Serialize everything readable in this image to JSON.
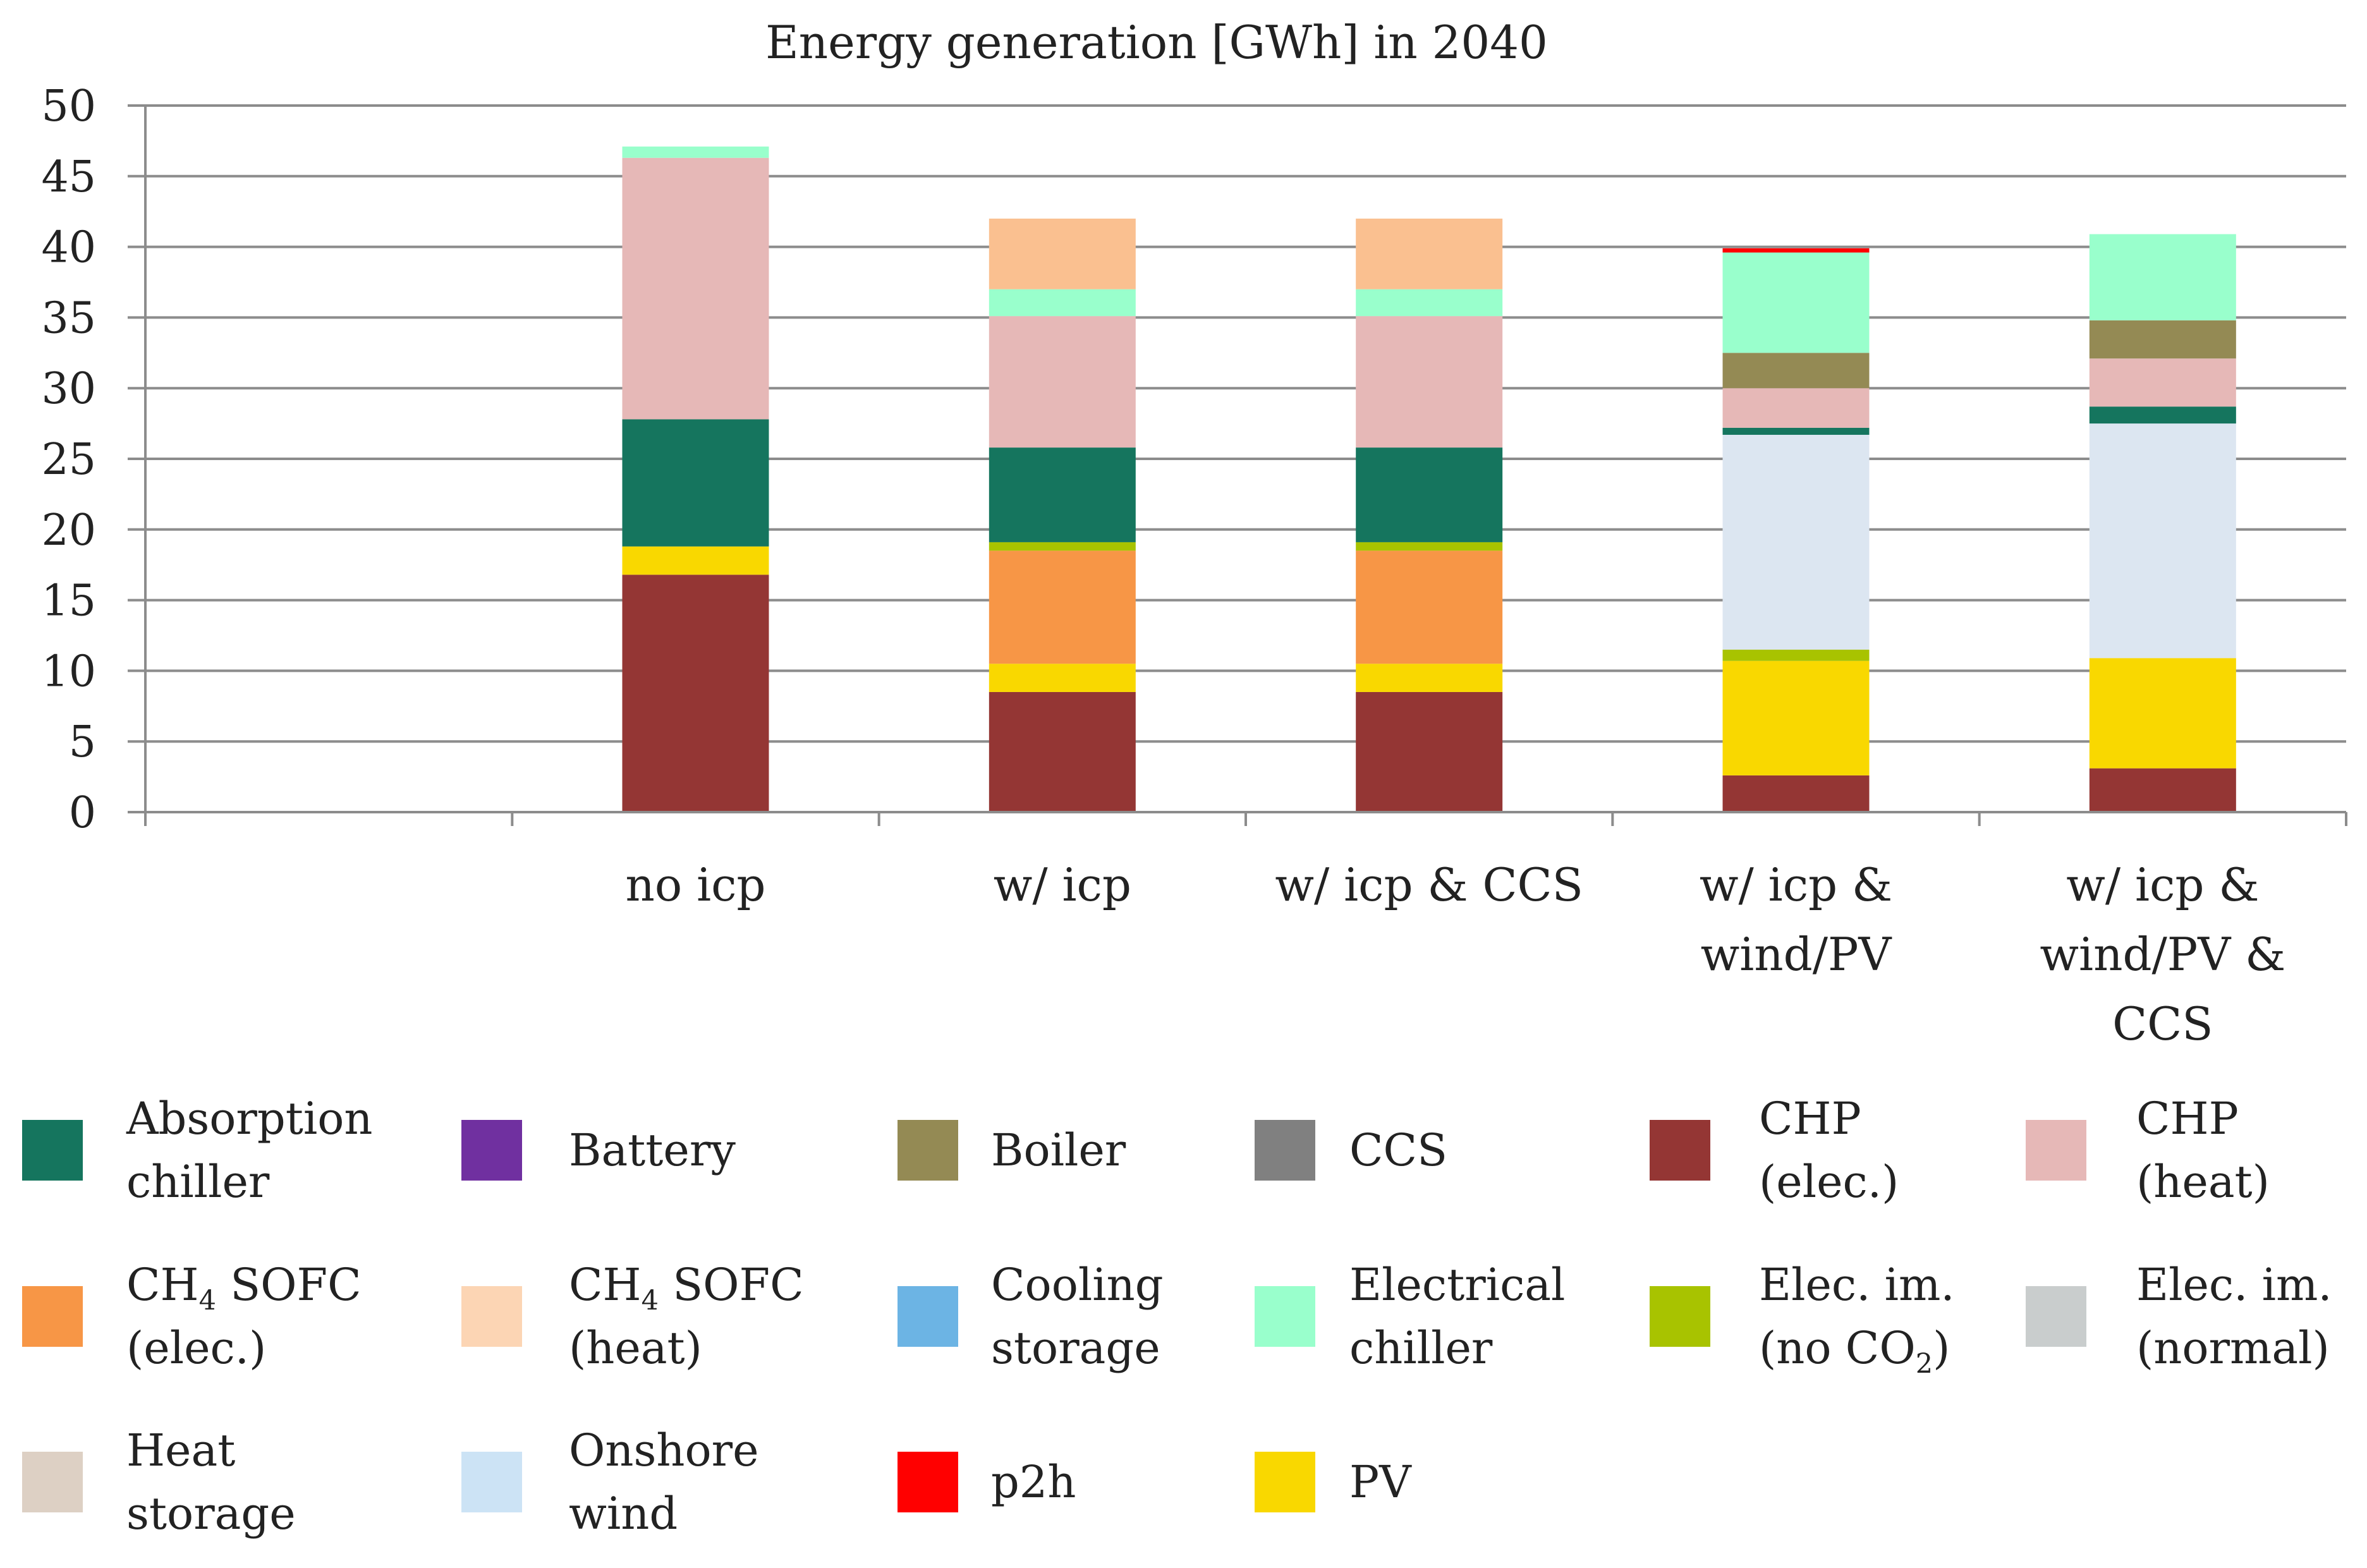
{
  "chart_data": {
    "type": "bar",
    "stacked": true,
    "title": "Energy generation [GWh] in 2040",
    "xlabel": "",
    "ylabel": "",
    "ylim": [
      0,
      50
    ],
    "yticks": [
      0,
      5,
      10,
      15,
      20,
      25,
      30,
      35,
      40,
      45,
      50
    ],
    "grid": true,
    "legend_position": "bottom",
    "categories": [
      {
        "id": "empty",
        "lines": []
      },
      {
        "id": "no-icp",
        "lines": [
          "no icp"
        ]
      },
      {
        "id": "w-icp",
        "lines": [
          "w/ icp"
        ]
      },
      {
        "id": "w-icp-ccs",
        "lines": [
          "w/ icp & CCS"
        ]
      },
      {
        "id": "w-icp-wind-pv",
        "lines": [
          "w/ icp &",
          "wind/PV"
        ]
      },
      {
        "id": "w-icp-wind-pv-ccs",
        "lines": [
          "w/ icp &",
          "wind/PV &",
          "CCS"
        ]
      }
    ],
    "series": [
      {
        "id": "chp-elec",
        "name": "CHP (elec.)",
        "color": "#943634",
        "values": [
          0,
          16.8,
          8.5,
          8.5,
          2.6,
          3.1
        ]
      },
      {
        "id": "pv",
        "name": "PV",
        "color": "#F9D800",
        "values": [
          0,
          2.0,
          2.0,
          2.0,
          8.1,
          7.8
        ]
      },
      {
        "id": "ch4-sofc-elec",
        "name": "CH4 SOFC (elec.)",
        "color": "#F79646",
        "values": [
          0,
          0,
          8.0,
          8.0,
          0,
          0
        ]
      },
      {
        "id": "elec-im-no-co2",
        "name": "Elec. im. (no CO2)",
        "color": "#A8C300",
        "values": [
          0,
          0,
          0.6,
          0.6,
          0.8,
          0
        ]
      },
      {
        "id": "onshore-wind",
        "name": "Onshore wind",
        "color": "#DCE6F1",
        "values": [
          0,
          0,
          0,
          0,
          15.2,
          16.6
        ]
      },
      {
        "id": "absorption-chiller",
        "name": "Absorption chiller",
        "color": "#15755E",
        "values": [
          0,
          9.0,
          6.7,
          6.7,
          0.5,
          1.2
        ]
      },
      {
        "id": "chp-heat",
        "name": "CHP (heat)",
        "color": "#E6B8B7",
        "values": [
          0,
          18.5,
          9.3,
          9.3,
          2.8,
          3.4
        ]
      },
      {
        "id": "boiler",
        "name": "Boiler",
        "color": "#948A54",
        "values": [
          0,
          0,
          0,
          0,
          2.5,
          2.7
        ]
      },
      {
        "id": "electrical-chiller",
        "name": "Electrical chiller",
        "color": "#99FFCC",
        "values": [
          0,
          0.8,
          1.9,
          1.9,
          7.1,
          6.1
        ]
      },
      {
        "id": "p2h",
        "name": "p2h",
        "color": "#FF0000",
        "values": [
          0,
          0,
          0,
          0,
          0.3,
          0
        ]
      },
      {
        "id": "ch4-sofc-heat",
        "name": "CH4 SOFC (heat)",
        "color": "#FAC090",
        "values": [
          0,
          0,
          5.0,
          5.0,
          0,
          0
        ]
      }
    ],
    "legend": [
      {
        "id": "absorption-chiller",
        "color": "#15755E",
        "lines": [
          "Absorption",
          "chiller"
        ]
      },
      {
        "id": "battery",
        "color": "#7030A0",
        "lines": [
          "Battery"
        ]
      },
      {
        "id": "boiler",
        "color": "#948A54",
        "lines": [
          "Boiler"
        ]
      },
      {
        "id": "ccs",
        "color": "#808080",
        "lines": [
          "CCS"
        ]
      },
      {
        "id": "chp-elec",
        "color": "#943634",
        "lines": [
          "CHP",
          "(elec.)"
        ]
      },
      {
        "id": "chp-heat",
        "color": "#E6B8B7",
        "lines": [
          "CHP",
          "(heat)"
        ]
      },
      {
        "id": "ch4-sofc-elec",
        "color": "#F79646",
        "lines": [
          "CH4 SOFC",
          "(elec.)"
        ]
      },
      {
        "id": "ch4-sofc-heat",
        "color": "#FCD5B4",
        "lines": [
          "CH4 SOFC",
          "(heat)"
        ]
      },
      {
        "id": "cooling-storage",
        "color": "#6CB4E4",
        "lines": [
          "Cooling",
          "storage"
        ]
      },
      {
        "id": "electrical-chiller",
        "color": "#99FFCC",
        "lines": [
          "Electrical",
          "chiller"
        ]
      },
      {
        "id": "elec-im-no-co2",
        "color": "#A8C300",
        "lines": [
          "Elec. im.",
          "(no CO2)"
        ]
      },
      {
        "id": "elec-im-normal",
        "color": "#C9CDCD",
        "lines": [
          "Elec. im.",
          "(normal)"
        ]
      },
      {
        "id": "heat-storage",
        "color": "#DDD0C4",
        "lines": [
          "Heat",
          "storage"
        ]
      },
      {
        "id": "onshore-wind",
        "color": "#CCE3F5",
        "lines": [
          "Onshore",
          "wind"
        ]
      },
      {
        "id": "p2h",
        "color": "#FF0000",
        "lines": [
          "p2h"
        ]
      },
      {
        "id": "pv",
        "color": "#F9D800",
        "lines": [
          "PV"
        ]
      }
    ]
  }
}
